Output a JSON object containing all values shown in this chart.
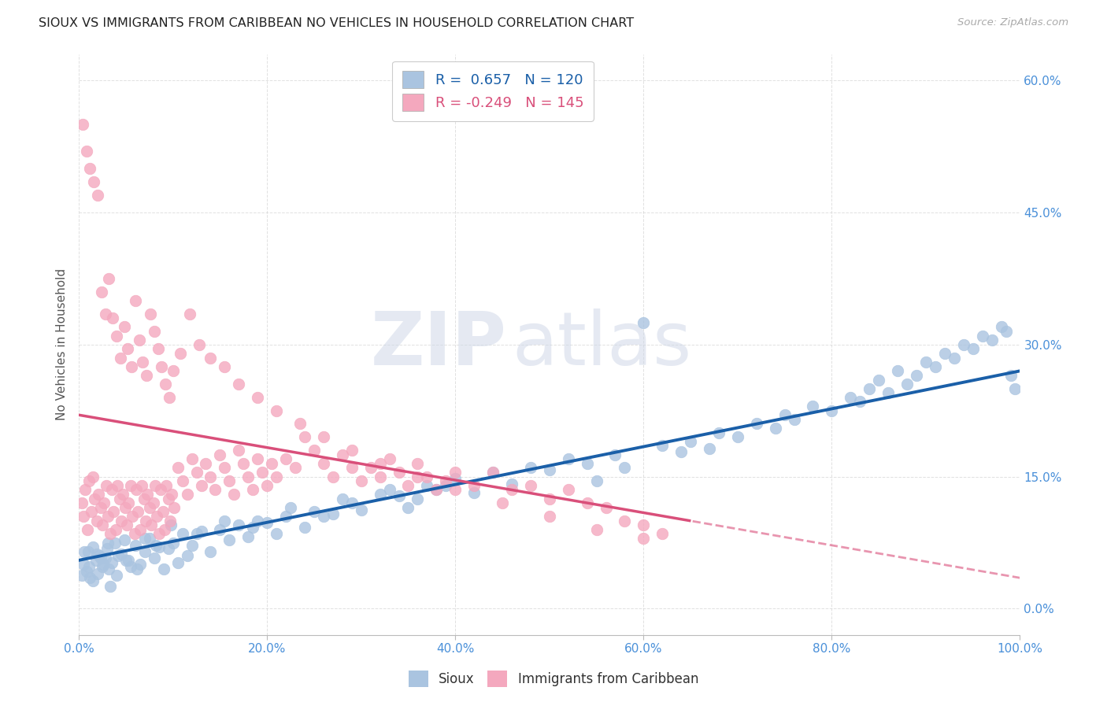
{
  "title": "SIOUX VS IMMIGRANTS FROM CARIBBEAN NO VEHICLES IN HOUSEHOLD CORRELATION CHART",
  "source": "Source: ZipAtlas.com",
  "ylabel": "No Vehicles in Household",
  "xlim": [
    0,
    100
  ],
  "ylim": [
    -3,
    63
  ],
  "xticks": [
    0,
    20,
    40,
    60,
    80,
    100
  ],
  "yticks": [
    0,
    15,
    30,
    45,
    60
  ],
  "xtick_labels": [
    "0.0%",
    "20.0%",
    "40.0%",
    "60.0%",
    "80.0%",
    "100.0%"
  ],
  "ytick_labels": [
    "0.0%",
    "15.0%",
    "30.0%",
    "45.0%",
    "60.0%"
  ],
  "legend_labels": [
    "Sioux",
    "Immigrants from Caribbean"
  ],
  "blue_R": 0.657,
  "blue_N": 120,
  "pink_R": -0.249,
  "pink_N": 145,
  "blue_color": "#aac4e0",
  "pink_color": "#f4a8be",
  "blue_line_color": "#1a5fa8",
  "pink_line_color": "#d94f7a",
  "watermark_zip": "ZIP",
  "watermark_atlas": "atlas",
  "background_color": "#ffffff",
  "grid_color": "#cccccc",
  "title_color": "#222222",
  "axis_tick_color": "#4a90d9",
  "legend_r_color": "#1a5fa8",
  "legend_r2_color": "#d94f7a",
  "blue_line_intercept": 5.5,
  "blue_line_slope": 0.215,
  "pink_line_intercept": 22.0,
  "pink_line_slope": -0.185,
  "blue_scatter_x": [
    0.5,
    0.8,
    1.0,
    1.2,
    1.5,
    1.8,
    2.0,
    2.2,
    2.5,
    2.8,
    3.0,
    3.2,
    3.5,
    3.8,
    4.0,
    4.5,
    5.0,
    5.5,
    6.0,
    6.5,
    7.0,
    7.5,
    8.0,
    8.5,
    9.0,
    9.5,
    10.0,
    10.5,
    11.0,
    11.5,
    12.0,
    13.0,
    14.0,
    15.0,
    16.0,
    17.0,
    18.0,
    19.0,
    20.0,
    21.0,
    22.0,
    24.0,
    25.0,
    27.0,
    28.0,
    30.0,
    32.0,
    34.0,
    35.0,
    37.0,
    38.0,
    40.0,
    42.0,
    44.0,
    46.0,
    48.0,
    50.0,
    52.0,
    54.0,
    55.0,
    57.0,
    58.0,
    60.0,
    62.0,
    64.0,
    65.0,
    67.0,
    68.0,
    70.0,
    72.0,
    74.0,
    75.0,
    76.0,
    78.0,
    80.0,
    82.0,
    83.0,
    84.0,
    85.0,
    86.0,
    87.0,
    88.0,
    89.0,
    90.0,
    91.0,
    92.0,
    93.0,
    94.0,
    95.0,
    96.0,
    97.0,
    98.0,
    98.5,
    99.0,
    99.5,
    1.5,
    2.3,
    3.3,
    4.8,
    6.2,
    0.3,
    0.6,
    1.1,
    1.9,
    2.6,
    3.1,
    4.2,
    5.3,
    7.0,
    8.2,
    9.8,
    12.5,
    15.5,
    18.5,
    22.5,
    26.0,
    29.0,
    33.0,
    36.0,
    39.0
  ],
  "blue_scatter_y": [
    5.0,
    4.2,
    6.5,
    3.5,
    7.0,
    5.5,
    4.0,
    6.0,
    4.8,
    5.8,
    6.8,
    4.5,
    5.2,
    7.5,
    3.8,
    6.2,
    5.5,
    4.8,
    7.2,
    5.0,
    6.5,
    8.0,
    5.8,
    7.0,
    4.5,
    6.8,
    7.5,
    5.2,
    8.5,
    6.0,
    7.2,
    8.8,
    6.5,
    9.0,
    7.8,
    9.5,
    8.2,
    10.0,
    9.8,
    8.5,
    10.5,
    9.2,
    11.0,
    10.8,
    12.5,
    11.2,
    13.0,
    12.8,
    11.5,
    14.0,
    13.5,
    14.8,
    13.2,
    15.5,
    14.2,
    16.0,
    15.8,
    17.0,
    16.5,
    14.5,
    17.5,
    16.0,
    32.5,
    18.5,
    17.8,
    19.0,
    18.2,
    20.0,
    19.5,
    21.0,
    20.5,
    22.0,
    21.5,
    23.0,
    22.5,
    24.0,
    23.5,
    25.0,
    26.0,
    24.5,
    27.0,
    25.5,
    26.5,
    28.0,
    27.5,
    29.0,
    28.5,
    30.0,
    29.5,
    31.0,
    30.5,
    32.0,
    31.5,
    26.5,
    25.0,
    3.2,
    5.8,
    2.5,
    7.8,
    4.5,
    3.8,
    6.5,
    4.8,
    6.2,
    5.0,
    7.5,
    6.0,
    5.5,
    8.0,
    7.2,
    9.5,
    8.5,
    10.0,
    9.2,
    11.5,
    10.5,
    12.0,
    13.5,
    12.5,
    14.0
  ],
  "pink_scatter_x": [
    0.3,
    0.5,
    0.7,
    0.9,
    1.1,
    1.3,
    1.5,
    1.7,
    1.9,
    2.1,
    2.3,
    2.5,
    2.7,
    2.9,
    3.1,
    3.3,
    3.5,
    3.7,
    3.9,
    4.1,
    4.3,
    4.5,
    4.7,
    4.9,
    5.1,
    5.3,
    5.5,
    5.7,
    5.9,
    6.1,
    6.3,
    6.5,
    6.7,
    6.9,
    7.1,
    7.3,
    7.5,
    7.7,
    7.9,
    8.1,
    8.3,
    8.5,
    8.7,
    8.9,
    9.1,
    9.3,
    9.5,
    9.7,
    9.9,
    10.1,
    10.5,
    11.0,
    11.5,
    12.0,
    12.5,
    13.0,
    13.5,
    14.0,
    14.5,
    15.0,
    15.5,
    16.0,
    16.5,
    17.0,
    17.5,
    18.0,
    18.5,
    19.0,
    19.5,
    20.0,
    20.5,
    21.0,
    22.0,
    23.0,
    24.0,
    25.0,
    26.0,
    27.0,
    28.0,
    29.0,
    30.0,
    31.0,
    32.0,
    33.0,
    34.0,
    35.0,
    36.0,
    37.0,
    38.0,
    39.0,
    40.0,
    42.0,
    44.0,
    46.0,
    48.0,
    50.0,
    52.0,
    54.0,
    56.0,
    58.0,
    60.0,
    62.0,
    0.4,
    0.8,
    1.2,
    1.6,
    2.0,
    2.4,
    2.8,
    3.2,
    3.6,
    4.0,
    4.4,
    4.8,
    5.2,
    5.6,
    6.0,
    6.4,
    6.8,
    7.2,
    7.6,
    8.0,
    8.4,
    8.8,
    9.2,
    9.6,
    10.0,
    10.8,
    11.8,
    12.8,
    14.0,
    15.5,
    17.0,
    19.0,
    21.0,
    23.5,
    26.0,
    29.0,
    32.0,
    36.0,
    40.0,
    45.0,
    50.0,
    55.0,
    60.0
  ],
  "pink_scatter_y": [
    12.0,
    10.5,
    13.5,
    9.0,
    14.5,
    11.0,
    15.0,
    12.5,
    10.0,
    13.0,
    11.5,
    9.5,
    12.0,
    14.0,
    10.5,
    8.5,
    13.5,
    11.0,
    9.0,
    14.0,
    12.5,
    10.0,
    13.0,
    11.5,
    9.5,
    12.0,
    14.0,
    10.5,
    8.5,
    13.5,
    11.0,
    9.0,
    14.0,
    12.5,
    10.0,
    13.0,
    11.5,
    9.5,
    12.0,
    14.0,
    10.5,
    8.5,
    13.5,
    11.0,
    9.0,
    14.0,
    12.5,
    10.0,
    13.0,
    11.5,
    16.0,
    14.5,
    13.0,
    17.0,
    15.5,
    14.0,
    16.5,
    15.0,
    13.5,
    17.5,
    16.0,
    14.5,
    13.0,
    18.0,
    16.5,
    15.0,
    13.5,
    17.0,
    15.5,
    14.0,
    16.5,
    15.0,
    17.0,
    16.0,
    19.5,
    18.0,
    16.5,
    15.0,
    17.5,
    16.0,
    14.5,
    16.0,
    15.0,
    17.0,
    15.5,
    14.0,
    16.5,
    15.0,
    13.5,
    14.5,
    15.5,
    14.0,
    15.5,
    13.5,
    14.0,
    12.5,
    13.5,
    12.0,
    11.5,
    10.0,
    9.5,
    8.5,
    55.0,
    52.0,
    50.0,
    48.5,
    47.0,
    36.0,
    33.5,
    37.5,
    33.0,
    31.0,
    28.5,
    32.0,
    29.5,
    27.5,
    35.0,
    30.5,
    28.0,
    26.5,
    33.5,
    31.5,
    29.5,
    27.5,
    25.5,
    24.0,
    27.0,
    29.0,
    33.5,
    30.0,
    28.5,
    27.5,
    25.5,
    24.0,
    22.5,
    21.0,
    19.5,
    18.0,
    16.5,
    15.0,
    13.5,
    12.0,
    10.5,
    9.0,
    8.0
  ]
}
